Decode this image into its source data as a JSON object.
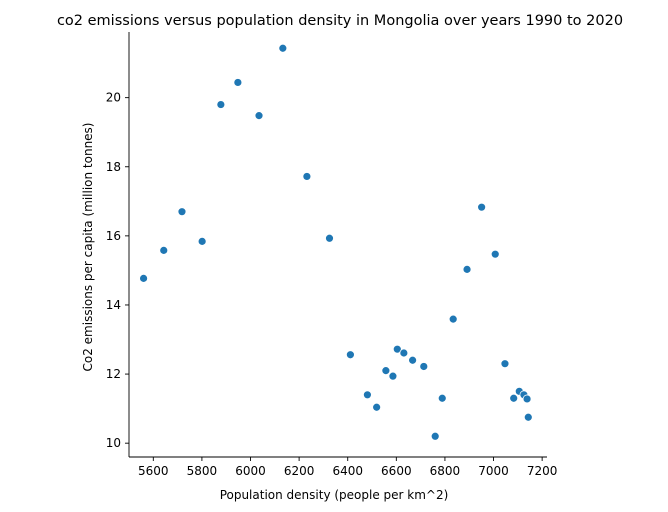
{
  "chart_data": {
    "type": "scatter",
    "title": "co2 emissions versus population density in Mongolia over years 1990 to 2020",
    "xlabel": "Population density (people per km^2)",
    "ylabel": "Co2 emissions per capita (million tonnes)",
    "xlim": [
      5500,
      7220
    ],
    "ylim": [
      9.6,
      21.9
    ],
    "xticks": [
      5600,
      5800,
      6000,
      6200,
      6400,
      6600,
      6800,
      7000,
      7200
    ],
    "yticks": [
      10,
      12,
      14,
      16,
      18,
      20
    ],
    "grid": false,
    "marker_color": "#1f77b4",
    "points": [
      {
        "x": 5560,
        "y": 14.77
      },
      {
        "x": 5643,
        "y": 15.58
      },
      {
        "x": 5718,
        "y": 16.7
      },
      {
        "x": 5801,
        "y": 15.84
      },
      {
        "x": 5878,
        "y": 19.8
      },
      {
        "x": 5948,
        "y": 20.44
      },
      {
        "x": 6035,
        "y": 19.48
      },
      {
        "x": 6133,
        "y": 21.43
      },
      {
        "x": 6232,
        "y": 17.72
      },
      {
        "x": 6325,
        "y": 15.93
      },
      {
        "x": 6411,
        "y": 12.56
      },
      {
        "x": 6481,
        "y": 11.4
      },
      {
        "x": 6519,
        "y": 11.04
      },
      {
        "x": 6557,
        "y": 12.1
      },
      {
        "x": 6586,
        "y": 11.94
      },
      {
        "x": 6604,
        "y": 12.72
      },
      {
        "x": 6631,
        "y": 12.61
      },
      {
        "x": 6667,
        "y": 12.4
      },
      {
        "x": 6713,
        "y": 12.22
      },
      {
        "x": 6760,
        "y": 10.2
      },
      {
        "x": 6789,
        "y": 11.3
      },
      {
        "x": 6834,
        "y": 13.59
      },
      {
        "x": 6891,
        "y": 15.03
      },
      {
        "x": 6951,
        "y": 16.83
      },
      {
        "x": 7007,
        "y": 15.47
      },
      {
        "x": 7047,
        "y": 12.3
      },
      {
        "x": 7083,
        "y": 11.3
      },
      {
        "x": 7106,
        "y": 11.5
      },
      {
        "x": 7125,
        "y": 11.4
      },
      {
        "x": 7138,
        "y": 11.28
      },
      {
        "x": 7143,
        "y": 10.75
      }
    ]
  }
}
